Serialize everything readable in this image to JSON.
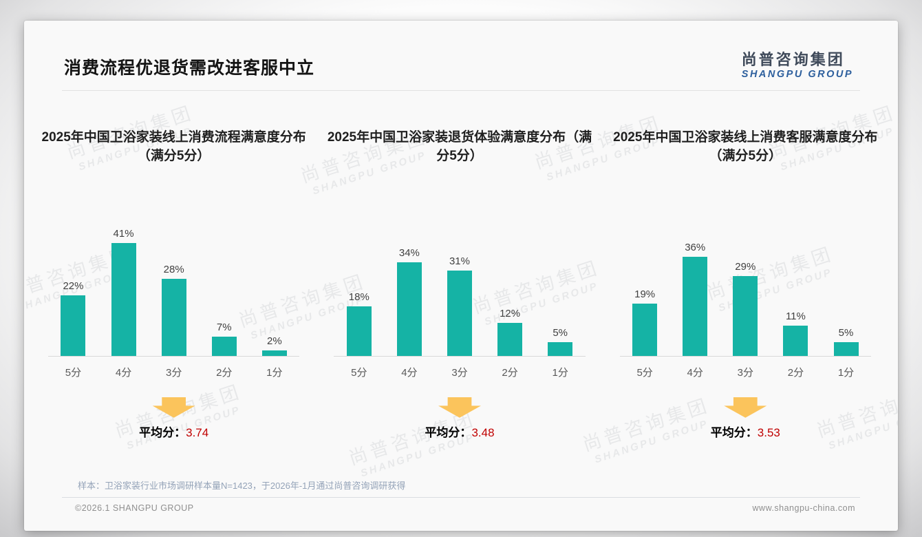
{
  "slide": {
    "title": "消费流程优退货需改进客服中立",
    "logo": {
      "zh": "尚普咨询集团",
      "en": "SHANGPU GROUP"
    },
    "watermark": {
      "zh": "尚普咨询集团",
      "en": "SHANGPU GROUP"
    },
    "source_note": "样本：卫浴家装行业市场调研样本量N=1423，于2026年-1月通过尚普咨询调研获得",
    "footer_left": "©2026.1 SHANGPU GROUP",
    "footer_right": "www.shangpu-china.com"
  },
  "colors": {
    "bar": "#15b3a5",
    "arrow": "#fbc45c",
    "accent_red": "#c00000",
    "logo_blue": "#2d5f9d",
    "logo_dark": "#3f4a5a"
  },
  "chart_data": [
    {
      "type": "bar",
      "title": "2025年中国卫浴家装线上消费流程满意度分布（满分5分）",
      "categories": [
        "5分",
        "4分",
        "3分",
        "2分",
        "1分"
      ],
      "values": [
        22,
        41,
        28,
        7,
        2
      ],
      "unit": "%",
      "ylim": [
        0,
        45
      ],
      "grid": false,
      "average_label": "平均分：",
      "average_value": "3.74"
    },
    {
      "type": "bar",
      "title": "2025年中国卫浴家装退货体验满意度分布（满分5分）",
      "categories": [
        "5分",
        "4分",
        "3分",
        "2分",
        "1分"
      ],
      "values": [
        18,
        34,
        31,
        12,
        5
      ],
      "unit": "%",
      "ylim": [
        0,
        45
      ],
      "grid": false,
      "average_label": "平均分：",
      "average_value": "3.48"
    },
    {
      "type": "bar",
      "title": "2025年中国卫浴家装线上消费客服满意度分布（满分5分）",
      "categories": [
        "5分",
        "4分",
        "3分",
        "2分",
        "1分"
      ],
      "values": [
        19,
        36,
        29,
        11,
        5
      ],
      "unit": "%",
      "ylim": [
        0,
        45
      ],
      "grid": false,
      "average_label": "平均分：",
      "average_value": "3.53"
    }
  ]
}
